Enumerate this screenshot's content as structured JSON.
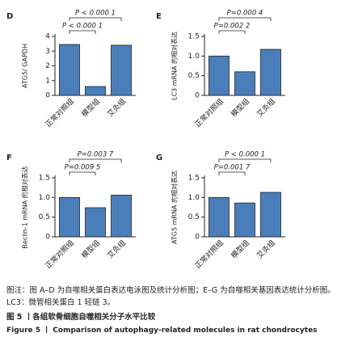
{
  "chart_data": [
    {
      "type": "bar",
      "panel": "D",
      "ylabel": "ATG5/ GAPDH",
      "categories": [
        "正常对照组",
        "模型组",
        "艾灸组"
      ],
      "values": [
        3.45,
        0.6,
        3.4
      ],
      "color": "#4a7ebb",
      "ylim": [
        0,
        4
      ],
      "yticks": [
        0,
        1,
        2,
        3,
        4
      ],
      "annotations": [
        "P < 0.000 1",
        "P < 0.000 1"
      ]
    },
    {
      "type": "bar",
      "panel": "E",
      "ylabel": "LC3 mRNA 的相对表达",
      "categories": [
        "正常对照组",
        "模型组",
        "艾灸组"
      ],
      "values": [
        1.0,
        0.6,
        1.17
      ],
      "color": "#4a7ebb",
      "ylim": [
        0,
        1.5
      ],
      "yticks": [
        0,
        0.5,
        {
          "value": 1,
          "label": "1.0"
        },
        1.5
      ],
      "annotations": [
        "P=0.002 2",
        "P=0.000 4"
      ]
    },
    {
      "type": "bar",
      "panel": "F",
      "ylabel": "Beclin-1 mRNA 的相对表达",
      "categories": [
        "正常对照组",
        "模型组",
        "艾灸组"
      ],
      "values": [
        1.0,
        0.74,
        1.06
      ],
      "color": "#4a7ebb",
      "ylim": [
        0,
        1.5
      ],
      "yticks": [
        0,
        0.5,
        {
          "value": 1,
          "label": "1.0"
        },
        1.5
      ],
      "annotations": [
        "P=0.009 5",
        "P=0.003 7"
      ]
    },
    {
      "type": "bar",
      "panel": "G",
      "ylabel": "ATG5 mRNA 的相对表达",
      "categories": [
        "正常对照组",
        "模型组",
        "艾灸组"
      ],
      "values": [
        1.0,
        0.86,
        1.13
      ],
      "color": "#4a7ebb",
      "ylim": [
        0,
        1.5
      ],
      "yticks": [
        0,
        0.5,
        {
          "value": 1,
          "label": "1.0"
        },
        1.5
      ],
      "annotations": [
        "P=0.001 7",
        "P < 0.000 1"
      ]
    }
  ],
  "caption": {
    "note": "图注：图 A–D 为自噬相关蛋白表达电泳图及统计分析图；E–G 为自噬相关基因表达统计分析图。LC3：微管相关蛋白 1 轻链 3。",
    "title_cn": "图 5 丨各组软骨细胞自噬相关分子水平比较",
    "title_en": "Figure 5 丨 Comparison of autophagy-related molecules in rat chondrocytes"
  }
}
